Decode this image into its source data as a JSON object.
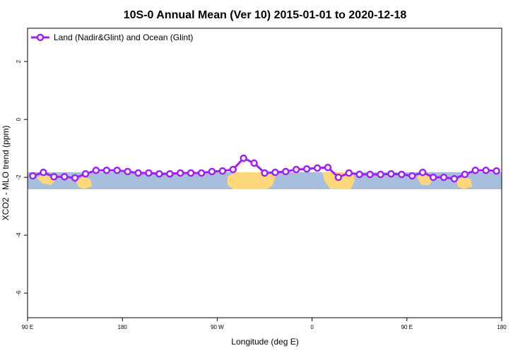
{
  "chart_data": {
    "type": "line",
    "title": "10S-0 Annual Mean (Ver 10)   2015-01-01 to 2020-12-18",
    "x_label": "Longitude (deg E)",
    "y_label": "XCO2 - MLO trend (ppm)",
    "x": [
      95,
      105,
      115,
      125,
      135,
      145,
      155,
      165,
      175,
      185,
      195,
      205,
      215,
      225,
      235,
      245,
      255,
      265,
      275,
      285,
      295,
      305,
      315,
      325,
      335,
      345,
      355,
      365,
      375,
      385,
      395,
      405,
      415,
      425,
      435,
      445,
      455,
      465,
      475,
      485,
      495,
      505,
      515,
      525,
      535
    ],
    "series": [
      {
        "name": "Land (Nadir&Glint) and Ocean (Glint)",
        "color": "#a020f0",
        "values": [
          -1.95,
          -1.83,
          -1.98,
          -1.98,
          -2.02,
          -1.88,
          -1.76,
          -1.76,
          -1.76,
          -1.8,
          -1.85,
          -1.85,
          -1.88,
          -1.88,
          -1.85,
          -1.85,
          -1.85,
          -1.8,
          -1.78,
          -1.73,
          -1.34,
          -1.51,
          -1.85,
          -1.83,
          -1.8,
          -1.73,
          -1.71,
          -1.68,
          -1.66,
          -2.0,
          -1.85,
          -1.9,
          -1.9,
          -1.9,
          -1.88,
          -1.9,
          -1.95,
          -1.83,
          -2.0,
          -2.0,
          -2.05,
          -1.9,
          -1.76,
          -1.76,
          -1.78
        ]
      }
    ],
    "xlim": [
      90,
      540
    ],
    "xticks": [
      {
        "value": 90,
        "label": "90 E"
      },
      180,
      {
        "value": 270,
        "label": "90 W"
      },
      {
        "value": 360,
        "label": "0"
      },
      {
        "value": 450,
        "label": "90 E"
      },
      {
        "value": 540,
        "label": "180"
      }
    ],
    "ylim": [
      -6.85,
      3.15
    ],
    "yticks": [
      -6,
      -4,
      -2,
      0,
      2
    ],
    "legend": "top-left"
  }
}
